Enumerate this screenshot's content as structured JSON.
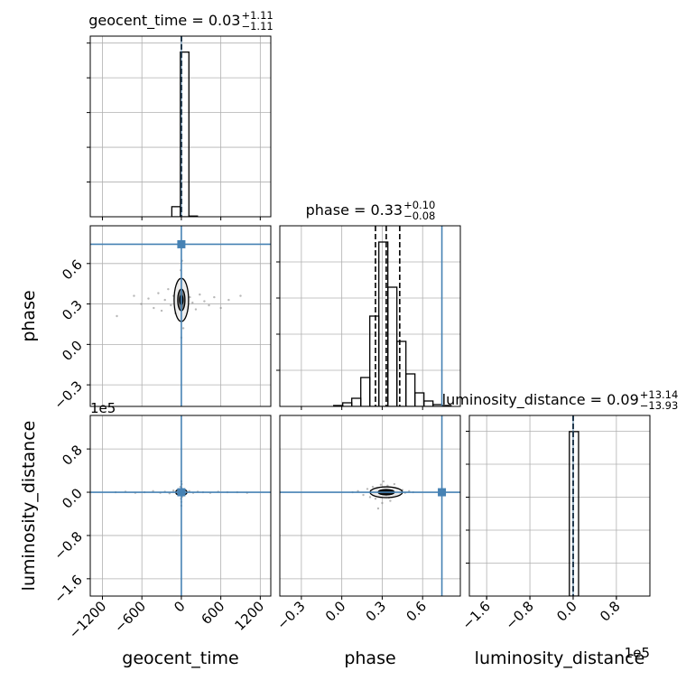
{
  "chart_data": {
    "type": "corner",
    "parameters": [
      {
        "name": "geocent_time",
        "title": {
          "text": "geocent_time = 0.03",
          "plus": "+1.11",
          "minus": "−1.11"
        },
        "lim": [
          -1385,
          1360
        ],
        "ticks": [
          {
            "value": -1200,
            "label": "−1200"
          },
          {
            "value": -600,
            "label": "−600"
          },
          0,
          600,
          1200
        ],
        "truth": 0,
        "quantiles": [
          -1.08,
          0.03,
          1.14
        ],
        "hist": {
          "bins": [
            -145,
            -15,
            115,
            245
          ],
          "counts": [
            0.29,
            4.74,
            0.02
          ],
          "ylim": [
            0,
            5.2
          ],
          "yticks": [
            1,
            2,
            3,
            4,
            5
          ]
        }
      },
      {
        "name": "phase",
        "title": {
          "text": "phase = 0.33",
          "plus": "+0.10",
          "minus": "−0.08"
        },
        "lim": [
          -0.46,
          0.88
        ],
        "ticks": [
          {
            "value": -0.3,
            "label": "−0.3"
          },
          {
            "value": 0,
            "label": "0.0"
          },
          0.3,
          0.6
        ],
        "truth": 0.743,
        "quantiles": [
          0.25,
          0.33,
          0.43
        ],
        "hist": {
          "bins": [
            -0.06,
            0.007,
            0.074,
            0.141,
            0.208,
            0.275,
            0.342,
            0.409,
            0.476,
            0.543,
            0.61,
            0.677,
            0.744,
            0.811
          ],
          "counts": [
            0.025,
            0.1,
            0.225,
            0.8,
            2.5,
            4.55,
            3.3,
            1.8,
            0.9,
            0.375,
            0.15,
            0.05,
            0.025
          ],
          "ylim": [
            0,
            5
          ],
          "yticks": [
            1,
            2,
            3,
            4
          ]
        }
      },
      {
        "name": "luminosity_distance",
        "title": {
          "text": "luminosity_distance = 0.09",
          "plus": "+13.14",
          "minus": "−13.93"
        },
        "lim": [
          -1.92,
          1.42
        ],
        "ticks": [
          {
            "value": -1.6,
            "label": "−1.6"
          },
          {
            "value": -0.8,
            "label": "−0.8"
          },
          {
            "value": 0,
            "label": "0.0"
          },
          0.8
        ],
        "offset": "1e5",
        "truth": 0,
        "quantiles": [
          -0.000138,
          9e-07,
          0.000132
        ],
        "hist": {
          "bins": [
            -0.07,
            0.1
          ],
          "counts": [
            4.99
          ],
          "ylim": [
            0,
            5.48
          ],
          "yticks": [
            1,
            2,
            3,
            4,
            5
          ]
        }
      }
    ],
    "pairs": [
      {
        "x": 0,
        "y": 1,
        "points": {
          "x": [
            -980,
            -720,
            -610,
            -500,
            -420,
            -350,
            -300,
            -250,
            -200,
            -160,
            -120,
            -90,
            -60,
            -30,
            -10,
            10,
            30,
            60,
            90,
            130,
            170,
            220,
            280,
            350,
            420,
            500,
            600,
            720,
            900,
            0
          ],
          "y": [
            0.21,
            0.36,
            0.3,
            0.34,
            0.27,
            0.38,
            0.25,
            0.33,
            0.41,
            0.29,
            0.36,
            0.23,
            0.45,
            0.18,
            0.55,
            0.62,
            0.12,
            0.39,
            0.28,
            0.35,
            0.31,
            0.26,
            0.37,
            0.32,
            0.29,
            0.35,
            0.27,
            0.33,
            0.36,
            0.05
          ]
        },
        "contours": [
          {
            "center": [
              0,
              0.33
            ],
            "half": [
              110,
              0.16
            ]
          },
          {
            "center": [
              0,
              0.33
            ],
            "half": [
              55,
              0.08
            ]
          },
          {
            "center": [
              0,
              0.33
            ],
            "half": [
              25,
              0.035
            ]
          }
        ]
      },
      {
        "x": 0,
        "y": 2,
        "points": {
          "x": [
            -1000,
            -850,
            -700,
            -560,
            -430,
            -320,
            -250,
            -180,
            -120,
            -70,
            -40,
            -15,
            -5,
            0,
            0,
            0,
            5,
            15,
            40,
            70,
            120,
            180,
            250,
            330,
            440,
            560,
            700,
            850,
            1000,
            0
          ],
          "y": [
            0.0,
            0.01,
            -0.01,
            0.0,
            0.02,
            -0.01,
            0.01,
            -0.02,
            0.03,
            -0.03,
            0.04,
            0.1,
            -0.12,
            0.2,
            -0.18,
            0.08,
            0.15,
            -0.08,
            0.03,
            -0.02,
            0.02,
            -0.01,
            0.01,
            0.0,
            -0.01,
            0.01,
            0.0,
            0.0,
            -0.01,
            -0.25
          ]
        },
        "contours": [
          {
            "center": [
              0,
              0
            ],
            "half": [
              85,
              0.06
            ]
          },
          {
            "center": [
              0,
              0
            ],
            "half": [
              40,
              0.03
            ]
          }
        ]
      },
      {
        "x": 1,
        "y": 2,
        "points": {
          "x": [
            0.08,
            0.12,
            0.16,
            0.19,
            0.21,
            0.23,
            0.25,
            0.26,
            0.28,
            0.29,
            0.3,
            0.31,
            0.32,
            0.33,
            0.34,
            0.35,
            0.36,
            0.37,
            0.38,
            0.4,
            0.41,
            0.43,
            0.45,
            0.47,
            0.5,
            0.53,
            0.27,
            0.31,
            0.36,
            0.39
          ],
          "y": [
            0.0,
            0.02,
            -0.05,
            0.06,
            -0.09,
            0.1,
            -0.12,
            0.05,
            -0.04,
            0.14,
            -0.2,
            0.03,
            0.09,
            -0.07,
            0.12,
            -0.1,
            0.04,
            -0.03,
            0.08,
            -0.05,
            0.06,
            -0.02,
            0.04,
            -0.01,
            0.02,
            0.0,
            -0.3,
            0.2,
            -0.16,
            0.15
          ]
        },
        "contours": [
          {
            "center": [
              0.33,
              0
            ],
            "half": [
              0.12,
              0.1
            ]
          },
          {
            "center": [
              0.33,
              0
            ],
            "half": [
              0.06,
              0.05
            ]
          }
        ]
      }
    ]
  }
}
